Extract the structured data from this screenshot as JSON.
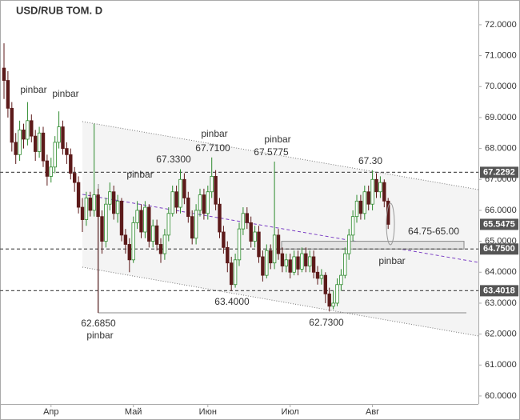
{
  "chart_data": {
    "type": "candlestick",
    "title": "USD/RUB TOM. D",
    "categories": [
      null,
      null,
      null,
      null,
      null,
      null,
      null,
      null,
      null,
      null,
      null,
      null,
      "Апр",
      null,
      null,
      null,
      null,
      null,
      null,
      null,
      null,
      null,
      null,
      null,
      null,
      null,
      null,
      null,
      null,
      null,
      null,
      null,
      null,
      "Май",
      null,
      null,
      null,
      null,
      null,
      null,
      null,
      null,
      null,
      null,
      null,
      null,
      null,
      null,
      null,
      null,
      null,
      null,
      "Июн",
      null,
      null,
      null,
      null,
      null,
      null,
      null,
      null,
      null,
      null,
      null,
      null,
      null,
      null,
      null,
      null,
      null,
      null,
      null,
      null,
      "Июл",
      null,
      null,
      null,
      null,
      null,
      null,
      null,
      null,
      null,
      null,
      null,
      null,
      null,
      null,
      null,
      null,
      null,
      null,
      null,
      null,
      "Авг",
      null,
      null,
      null,
      null
    ],
    "open": [
      70.6,
      70.2,
      69.3,
      68.2,
      67.8,
      68.6,
      68.3,
      68.9,
      68.4,
      67.9,
      68.5,
      67.6,
      67.1,
      67.4,
      68.2,
      68.7,
      68.0,
      67.8,
      67.2,
      66.9,
      66.1,
      65.7,
      66.4,
      66.0,
      66.5,
      65.8,
      65.0,
      66.2,
      66.6,
      65.9,
      66.3,
      65.2,
      64.9,
      64.4,
      65.6,
      66.0,
      65.3,
      66.1,
      65.0,
      65.5,
      64.9,
      64.6,
      65.2,
      65.9,
      66.6,
      66.1,
      67.0,
      66.4,
      65.8,
      65.1,
      66.0,
      66.5,
      65.9,
      66.6,
      67.1,
      66.2,
      65.3,
      64.8,
      64.3,
      63.6,
      64.4,
      65.4,
      65.9,
      65.6,
      65.0,
      65.3,
      64.5,
      63.9,
      64.7,
      64.3,
      65.2,
      64.6,
      64.2,
      64.4,
      64.0,
      64.5,
      64.1,
      64.6,
      64.2,
      64.5,
      64.0,
      63.8,
      63.9,
      63.3,
      62.9,
      63.0,
      63.6,
      63.9,
      64.6,
      65.2,
      65.8,
      66.3,
      65.9,
      66.6,
      66.2,
      67.0,
      66.6,
      66.9,
      66.3
    ],
    "high": [
      71.4,
      70.5,
      69.5,
      68.5,
      68.9,
      68.8,
      69.5,
      69.1,
      68.6,
      68.7,
      68.7,
      67.8,
      67.7,
      68.4,
      69.2,
      68.9,
      68.2,
      68.0,
      67.4,
      67.1,
      66.4,
      66.6,
      66.6,
      68.8,
      66.7,
      66.0,
      66.4,
      66.9,
      66.8,
      66.5,
      66.4,
      65.4,
      65.1,
      65.8,
      66.3,
      66.2,
      66.3,
      66.2,
      65.7,
      65.7,
      65.1,
      65.4,
      66.1,
      66.8,
      66.8,
      67.33,
      67.2,
      66.6,
      66.0,
      66.2,
      66.7,
      66.7,
      66.8,
      67.71,
      67.3,
      66.4,
      65.5,
      65.0,
      64.5,
      64.6,
      65.6,
      66.1,
      66.1,
      65.8,
      65.5,
      65.5,
      64.7,
      64.9,
      64.9,
      67.5775,
      65.4,
      64.8,
      64.6,
      64.6,
      64.7,
      64.7,
      64.8,
      64.8,
      64.7,
      64.7,
      64.2,
      64.1,
      64.0,
      63.5,
      63.4,
      63.8,
      64.1,
      64.8,
      65.4,
      66.0,
      66.5,
      66.5,
      66.8,
      66.8,
      67.3,
      67.2,
      67.1,
      67.0,
      66.4
    ],
    "low": [
      69.6,
      69.0,
      67.9,
      67.5,
      67.6,
      68.0,
      68.1,
      68.2,
      67.6,
      67.7,
      67.4,
      66.8,
      66.9,
      67.2,
      68.0,
      67.8,
      67.5,
      67.0,
      66.6,
      65.9,
      65.3,
      65.5,
      65.8,
      65.8,
      62.685,
      64.6,
      64.8,
      66.0,
      65.7,
      65.6,
      65.0,
      64.6,
      64.0,
      64.3,
      65.4,
      65.1,
      65.1,
      64.8,
      64.8,
      64.7,
      64.3,
      64.4,
      65.0,
      65.8,
      65.9,
      65.9,
      66.2,
      65.6,
      64.9,
      64.9,
      65.8,
      65.7,
      65.7,
      66.4,
      66.0,
      65.1,
      64.6,
      64.0,
      63.4,
      63.5,
      64.2,
      65.2,
      65.4,
      64.8,
      64.8,
      64.3,
      63.7,
      63.8,
      64.1,
      64.1,
      64.4,
      64.0,
      64.0,
      63.8,
      63.9,
      63.9,
      64.0,
      64.0,
      64.0,
      63.8,
      63.6,
      63.6,
      63.0,
      62.73,
      62.8,
      62.9,
      63.4,
      63.8,
      64.4,
      65.0,
      65.6,
      65.7,
      65.7,
      66.0,
      66.0,
      66.4,
      66.4,
      66.1,
      65.4
    ],
    "close": [
      70.2,
      69.3,
      68.2,
      67.8,
      68.6,
      68.3,
      68.9,
      68.4,
      67.9,
      68.5,
      67.6,
      67.1,
      67.4,
      68.2,
      68.7,
      68.0,
      67.8,
      67.2,
      66.9,
      66.1,
      65.7,
      66.4,
      66.0,
      66.5,
      65.8,
      65.0,
      66.2,
      66.6,
      65.9,
      66.3,
      65.2,
      64.9,
      64.4,
      65.6,
      66.0,
      65.3,
      66.1,
      65.0,
      65.5,
      64.9,
      64.6,
      65.2,
      65.9,
      66.6,
      66.1,
      67.0,
      66.4,
      65.8,
      65.1,
      66.0,
      66.5,
      65.9,
      66.6,
      67.1,
      66.2,
      65.3,
      64.8,
      64.3,
      63.6,
      64.4,
      65.4,
      65.9,
      65.6,
      65.0,
      65.3,
      64.5,
      63.9,
      64.7,
      64.3,
      65.2,
      64.6,
      64.2,
      64.4,
      64.0,
      64.5,
      64.1,
      64.6,
      64.2,
      64.5,
      64.0,
      63.8,
      63.9,
      63.3,
      62.9,
      63.0,
      63.6,
      63.9,
      64.6,
      65.2,
      65.8,
      66.3,
      65.9,
      66.6,
      66.2,
      67.0,
      66.6,
      66.9,
      66.3,
      65.5475
    ],
    "colors": {
      "up": "#2e8b2e",
      "down": "#5c1a1a"
    },
    "ylim": [
      59.74,
      72.8
    ],
    "yticks": [
      {
        "value": 60,
        "label": "60.0000"
      },
      {
        "value": 61,
        "label": "61.0000"
      },
      {
        "value": 62,
        "label": "62.0000"
      },
      {
        "value": 63,
        "label": "63.0000"
      },
      {
        "value": 64,
        "label": "64.0000"
      },
      {
        "value": 65,
        "label": "65.0000"
      },
      {
        "value": 66,
        "label": "66.0000"
      },
      {
        "value": 67,
        "label": "67.0000"
      },
      {
        "value": 68,
        "label": "68.0000"
      },
      {
        "value": 69,
        "label": "69.0000"
      },
      {
        "value": 70,
        "label": "70.0000"
      },
      {
        "value": 71,
        "label": "71.0000"
      },
      {
        "value": 72,
        "label": "72.0000"
      }
    ],
    "levels": [
      {
        "value": 67.2292,
        "label": "67.2292"
      },
      {
        "value": 64.75,
        "label": "64.7500"
      },
      {
        "value": 63.4018,
        "label": "63.4018"
      }
    ],
    "last_price": {
      "value": 65.5475,
      "label": "65.5475"
    },
    "zone": {
      "label": "64.75-65.00",
      "range": [
        64.75,
        65.0
      ]
    },
    "annotations": [
      "pinbar",
      "pinbar",
      "67.3300",
      "pinbar",
      "pinbar",
      "67.7100",
      "pinbar",
      "67.5775",
      "67.30",
      "pinbar",
      "63.4000",
      "62.6850",
      "pinbar",
      "62.7300"
    ]
  }
}
